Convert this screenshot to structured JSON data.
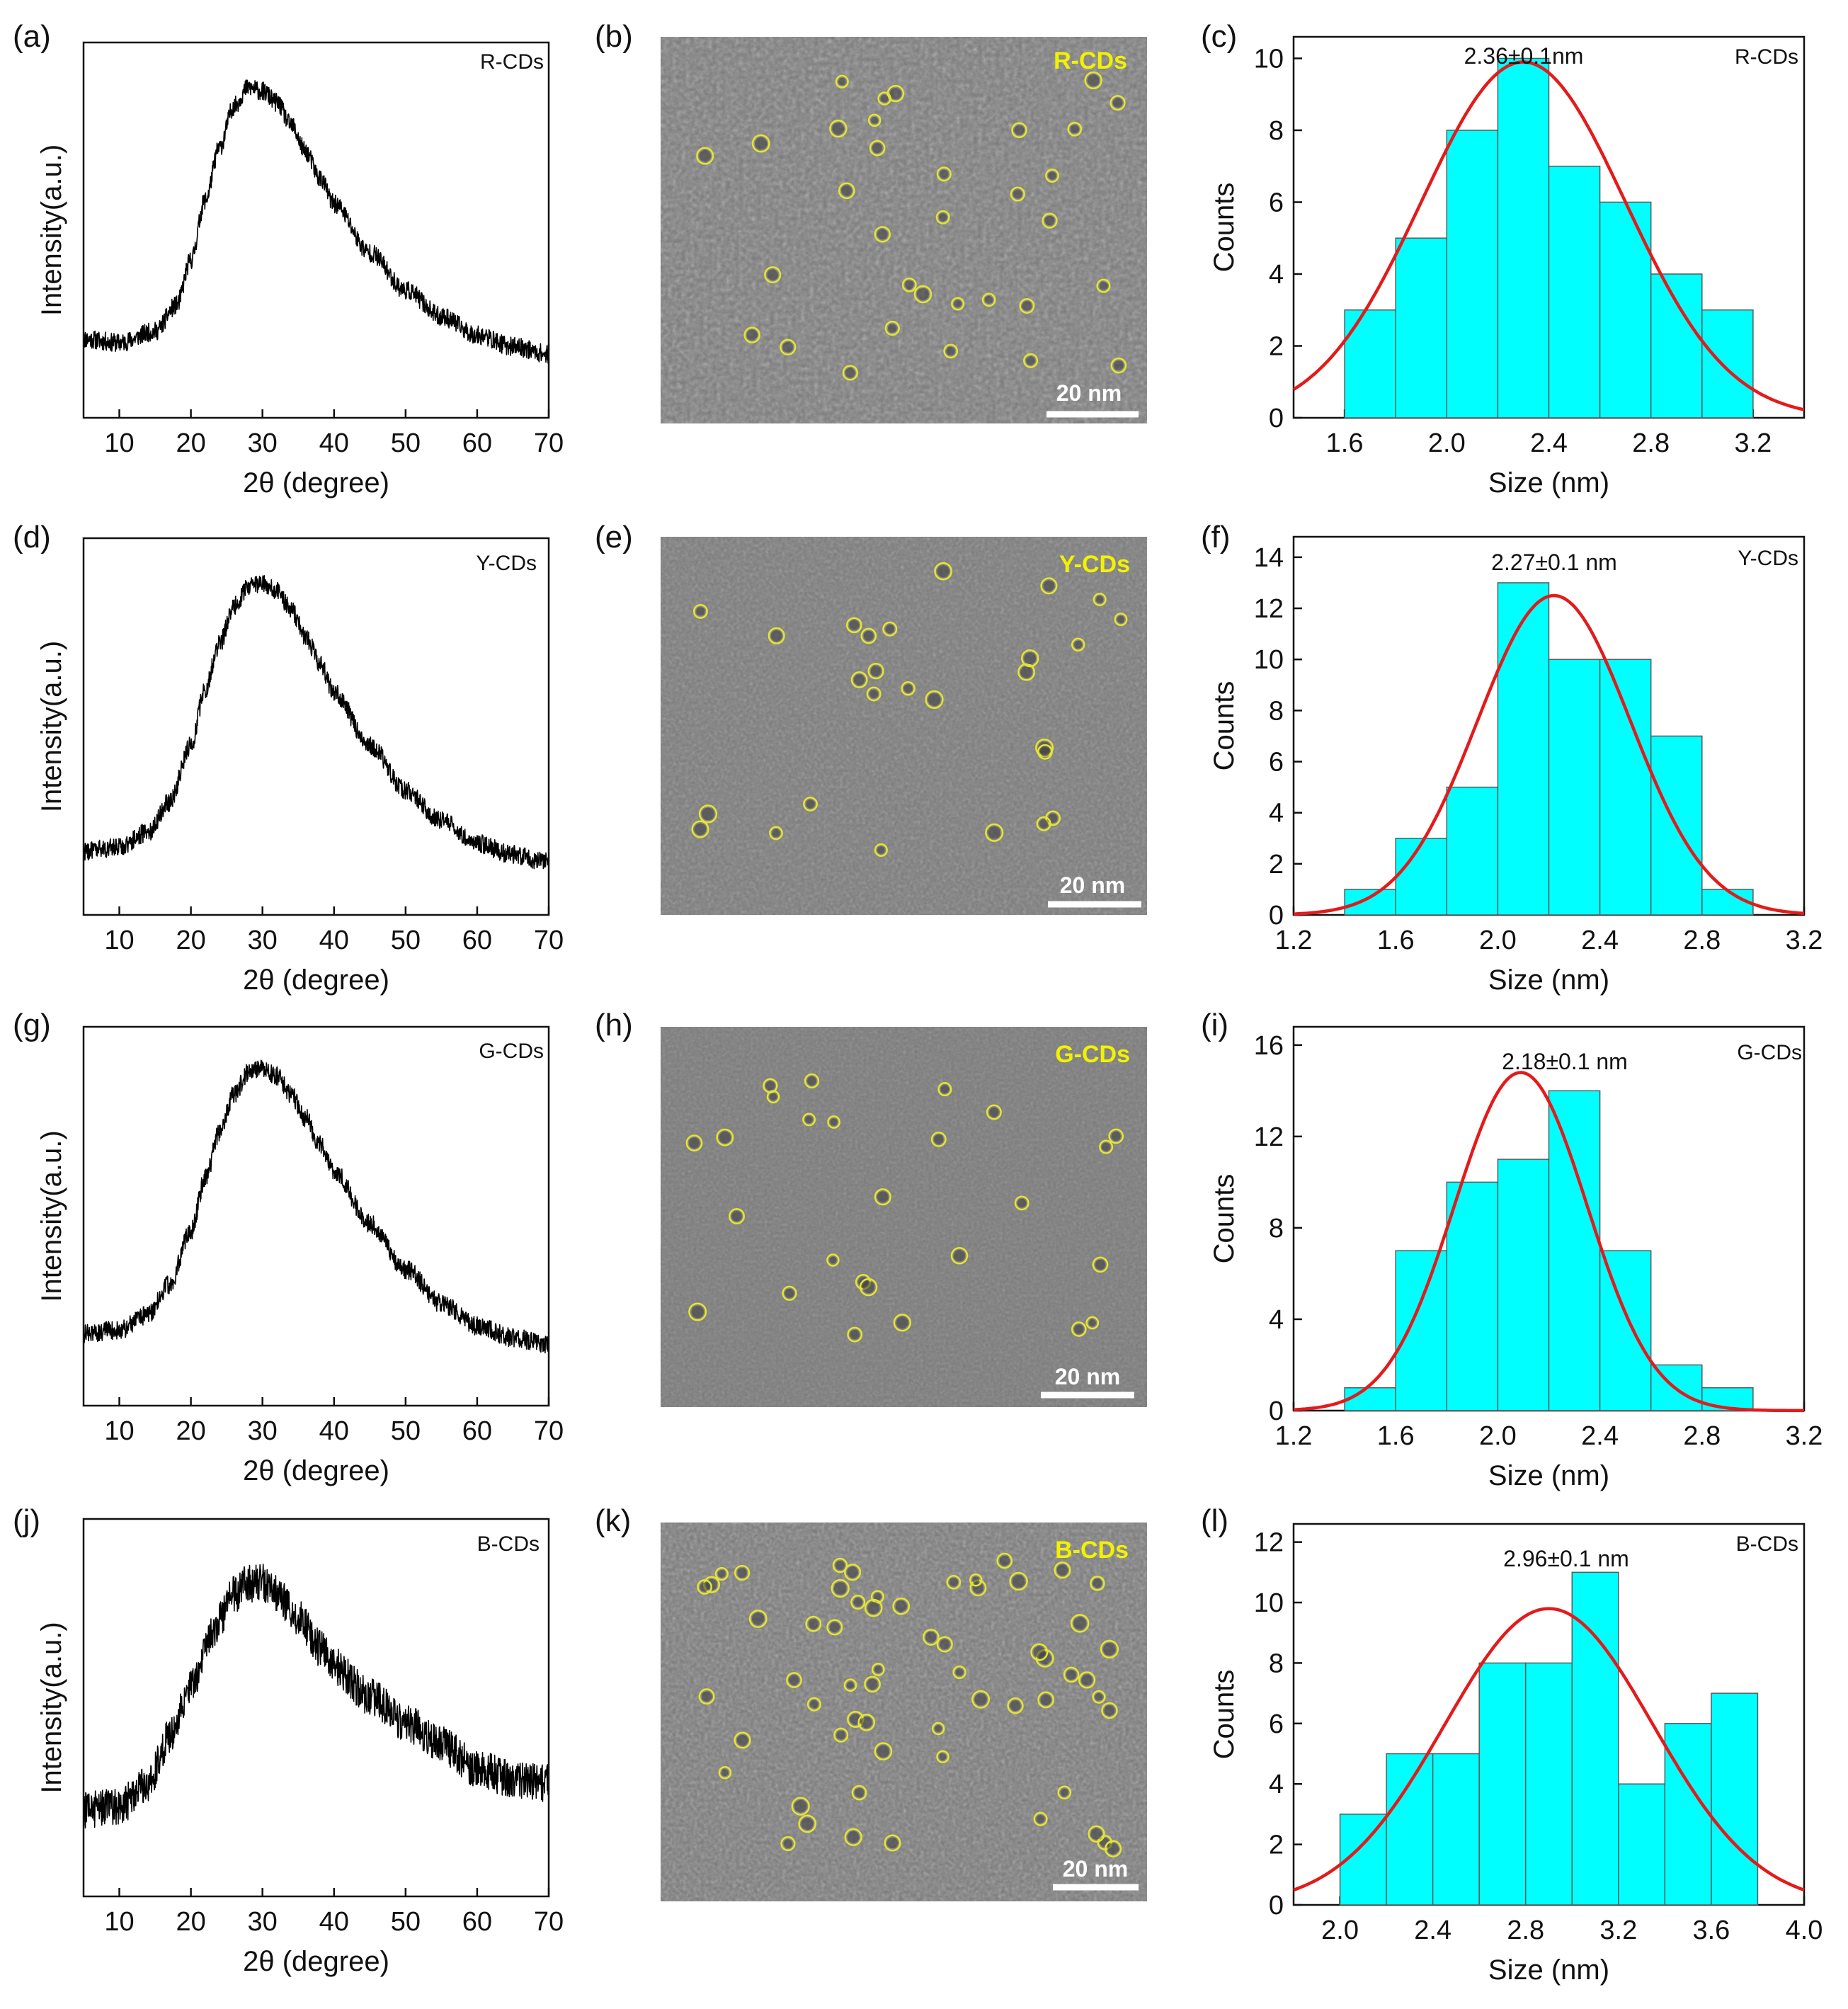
{
  "figure": {
    "colors": {
      "xrd_line": "#000000",
      "hist_fill": "#00ffff",
      "hist_edge": "#5a5a5a",
      "fit_curve": "#e21b1b",
      "tem_bg": "#7b7b7b",
      "tem_marker": "#e6e62e",
      "tem_label": "#f2f200",
      "scale_bar": "#ffffff"
    },
    "tem_panels": [
      {
        "panel_label": "(b)",
        "sample": "R-CDs",
        "scale_bar_label": "20 nm",
        "particle_count_marked": 33
      },
      {
        "panel_label": "(e)",
        "sample": "Y-CDs",
        "scale_bar_label": "20 nm",
        "particle_count_marked": 27
      },
      {
        "panel_label": "(h)",
        "sample": "G-CDs",
        "scale_bar_label": "20 nm",
        "particle_count_marked": 26
      },
      {
        "panel_label": "(k)",
        "sample": "B-CDs",
        "scale_bar_label": "20 nm",
        "particle_count_marked": 60
      }
    ]
  },
  "chart_data": [
    {
      "type": "line",
      "panel_label": "(a)",
      "sample": "R-CDs",
      "xlabel": "2θ (degree)",
      "ylabel": "Intensity(a.u.)",
      "xlim": [
        5,
        70
      ],
      "ylim": [
        0,
        1
      ],
      "xticks": [
        10,
        20,
        30,
        40,
        50,
        60,
        70
      ],
      "yticks_shown": false,
      "noise": 0.025,
      "x": [
        5,
        10,
        15,
        18,
        20,
        22,
        24,
        26,
        28,
        30,
        32,
        34,
        36,
        38,
        40,
        45,
        50,
        55,
        60,
        65,
        70
      ],
      "y": [
        0.21,
        0.2,
        0.23,
        0.3,
        0.42,
        0.58,
        0.72,
        0.83,
        0.88,
        0.87,
        0.84,
        0.78,
        0.71,
        0.64,
        0.57,
        0.44,
        0.34,
        0.27,
        0.22,
        0.19,
        0.17
      ]
    },
    {
      "type": "bar",
      "panel_label": "(c)",
      "sample": "R-CDs",
      "annotation": "2.36±0.1nm",
      "xlabel": "Size (nm)",
      "ylabel": "Counts",
      "xlim": [
        1.4,
        3.4
      ],
      "ylim": [
        0,
        10.6
      ],
      "xticks": [
        1.6,
        2.0,
        2.4,
        2.8,
        3.2
      ],
      "yticks": [
        0,
        2,
        4,
        6,
        8,
        10
      ],
      "bin_edges": [
        1.6,
        1.8,
        2.0,
        2.2,
        2.4,
        2.6,
        2.8,
        3.0,
        3.2
      ],
      "values": [
        3,
        5,
        8,
        10,
        7,
        6,
        4,
        3
      ],
      "fit": {
        "type": "gaussian",
        "center": 2.3,
        "amplitude": 9.9,
        "sigma": 0.4
      }
    },
    {
      "type": "line",
      "panel_label": "(d)",
      "sample": "Y-CDs",
      "xlabel": "2θ (degree)",
      "ylabel": "Intensity(a.u.)",
      "xlim": [
        5,
        70
      ],
      "ylim": [
        0,
        1
      ],
      "xticks": [
        10,
        20,
        30,
        40,
        50,
        60,
        70
      ],
      "yticks_shown": false,
      "noise": 0.025,
      "x": [
        5,
        10,
        14,
        17,
        20,
        22,
        24,
        26,
        28,
        30,
        32,
        34,
        36,
        38,
        40,
        45,
        50,
        55,
        60,
        65,
        70
      ],
      "y": [
        0.17,
        0.18,
        0.22,
        0.3,
        0.45,
        0.6,
        0.72,
        0.82,
        0.87,
        0.88,
        0.86,
        0.81,
        0.74,
        0.67,
        0.59,
        0.45,
        0.33,
        0.25,
        0.19,
        0.16,
        0.14
      ]
    },
    {
      "type": "bar",
      "panel_label": "(f)",
      "sample": "Y-CDs",
      "annotation": "2.27±0.1 nm",
      "xlabel": "Size (nm)",
      "ylabel": "Counts",
      "xlim": [
        1.2,
        3.2
      ],
      "ylim": [
        0,
        14.8
      ],
      "xticks": [
        1.2,
        1.6,
        2.0,
        2.4,
        2.8,
        3.2
      ],
      "yticks": [
        0,
        2,
        4,
        6,
        8,
        10,
        12,
        14
      ],
      "bin_edges": [
        1.4,
        1.6,
        1.8,
        2.0,
        2.2,
        2.4,
        2.6,
        2.8,
        3.0
      ],
      "values": [
        1,
        3,
        5,
        13,
        10,
        10,
        7,
        1
      ],
      "fit": {
        "type": "gaussian",
        "center": 2.22,
        "amplitude": 12.5,
        "sigma": 0.3
      }
    },
    {
      "type": "line",
      "panel_label": "(g)",
      "sample": "G-CDs",
      "xlabel": "2θ (degree)",
      "ylabel": "Intensity(a.u.)",
      "xlim": [
        5,
        70
      ],
      "ylim": [
        0,
        1
      ],
      "xticks": [
        10,
        20,
        30,
        40,
        50,
        60,
        70
      ],
      "yticks_shown": false,
      "noise": 0.025,
      "x": [
        5,
        10,
        14,
        17,
        20,
        22,
        24,
        26,
        28,
        30,
        32,
        34,
        36,
        38,
        40,
        45,
        50,
        55,
        60,
        65,
        70
      ],
      "y": [
        0.19,
        0.2,
        0.24,
        0.32,
        0.46,
        0.6,
        0.72,
        0.82,
        0.88,
        0.89,
        0.87,
        0.82,
        0.76,
        0.69,
        0.62,
        0.48,
        0.36,
        0.27,
        0.21,
        0.18,
        0.16
      ]
    },
    {
      "type": "bar",
      "panel_label": "(i)",
      "sample": "G-CDs",
      "annotation": "2.18±0.1 nm",
      "xlabel": "Size (nm)",
      "ylabel": "Counts",
      "xlim": [
        1.2,
        3.2
      ],
      "ylim": [
        0,
        16.8
      ],
      "xticks": [
        1.2,
        1.6,
        2.0,
        2.4,
        2.8,
        3.2
      ],
      "yticks": [
        0,
        4,
        8,
        12,
        16
      ],
      "bin_edges": [
        1.4,
        1.6,
        1.8,
        2.0,
        2.2,
        2.4,
        2.6,
        2.8,
        3.0
      ],
      "values": [
        1,
        7,
        10,
        11,
        14,
        7,
        2,
        1
      ],
      "fit": {
        "type": "gaussian",
        "center": 2.09,
        "amplitude": 14.8,
        "sigma": 0.26
      }
    },
    {
      "type": "line",
      "panel_label": "(j)",
      "sample": "B-CDs",
      "xlabel": "2θ (degree)",
      "ylabel": "Intensity(a.u.)",
      "xlim": [
        5,
        70
      ],
      "ylim": [
        0,
        1
      ],
      "xticks": [
        10,
        20,
        30,
        40,
        50,
        60,
        70
      ],
      "yticks_shown": false,
      "noise": 0.05,
      "x": [
        5,
        10,
        14,
        17,
        20,
        23,
        26,
        28,
        30,
        32,
        35,
        38,
        40,
        45,
        50,
        55,
        60,
        65,
        70
      ],
      "y": [
        0.23,
        0.24,
        0.3,
        0.42,
        0.56,
        0.7,
        0.8,
        0.83,
        0.83,
        0.8,
        0.74,
        0.66,
        0.61,
        0.53,
        0.46,
        0.4,
        0.34,
        0.31,
        0.3
      ]
    },
    {
      "type": "bar",
      "panel_label": "(l)",
      "sample": "B-CDs",
      "annotation": "2.96±0.1 nm",
      "xlabel": "Size (nm)",
      "ylabel": "Counts",
      "xlim": [
        1.8,
        4.0
      ],
      "ylim": [
        0,
        12.6
      ],
      "xticks": [
        2.0,
        2.4,
        2.8,
        3.2,
        3.6,
        4.0
      ],
      "yticks": [
        0,
        2,
        4,
        6,
        8,
        10,
        12
      ],
      "bin_edges": [
        2.0,
        2.2,
        2.4,
        2.6,
        2.8,
        3.0,
        3.2,
        3.4,
        3.6,
        3.8
      ],
      "values": [
        3,
        5,
        5,
        8,
        8,
        11,
        4,
        6,
        7
      ],
      "fit": {
        "type": "gaussian",
        "center": 2.9,
        "amplitude": 9.8,
        "sigma": 0.45
      }
    }
  ]
}
